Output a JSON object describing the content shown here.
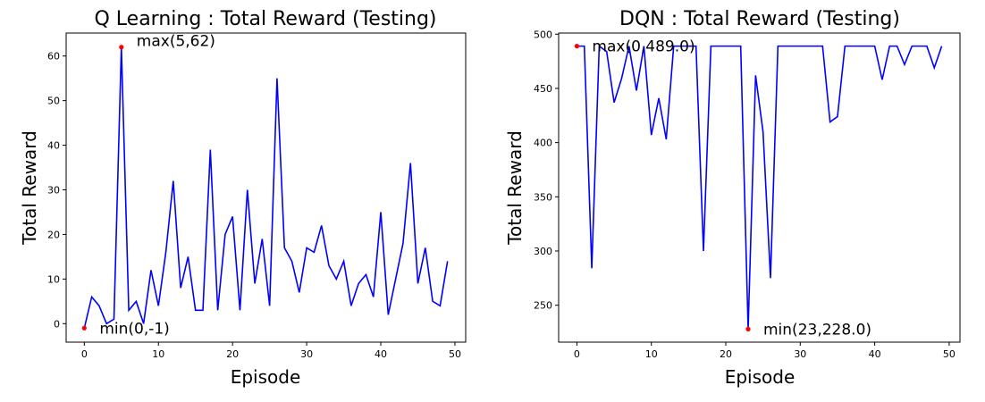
{
  "chart_data": [
    {
      "type": "line",
      "title": "Q Learning : Total Reward (Testing)",
      "xlabel": "Episode",
      "ylabel": "Total Reward",
      "xlim": [
        -2.45,
        51.45
      ],
      "ylim": [
        -4.15,
        65.15
      ],
      "xticks": [
        0,
        10,
        20,
        30,
        40,
        50
      ],
      "yticks": [
        0,
        10,
        20,
        30,
        40,
        50,
        60
      ],
      "line_color": "#0000ff",
      "marker_color": "#ff0000",
      "grid": false,
      "x": [
        0,
        1,
        2,
        3,
        4,
        5,
        6,
        7,
        8,
        9,
        10,
        11,
        12,
        13,
        14,
        15,
        16,
        17,
        18,
        19,
        20,
        21,
        22,
        23,
        24,
        25,
        26,
        27,
        28,
        29,
        30,
        31,
        32,
        33,
        34,
        35,
        36,
        37,
        38,
        39,
        40,
        41,
        42,
        43,
        44,
        45,
        46,
        47,
        48,
        49
      ],
      "values": [
        -1,
        6,
        4,
        0,
        1,
        62,
        3,
        5,
        0,
        12,
        4,
        16,
        32,
        8,
        15,
        3,
        3,
        39,
        3,
        20,
        24,
        3,
        30,
        9,
        19,
        4,
        55,
        17,
        14,
        7,
        17,
        16,
        22,
        13,
        10,
        14,
        4,
        9,
        11,
        6,
        25,
        2,
        10,
        18,
        36,
        9,
        17,
        5,
        4,
        14
      ],
      "annotations": [
        {
          "label": "max(5,62)",
          "x": 5,
          "y": 62,
          "anchor": "upper-right"
        },
        {
          "label": "min(0,-1)",
          "x": 0,
          "y": -1,
          "anchor": "right"
        }
      ]
    },
    {
      "type": "line",
      "title": "DQN : Total Reward (Testing)",
      "xlabel": "Episode",
      "ylabel": "Total Reward",
      "xlim": [
        -2.45,
        51.45
      ],
      "ylim": [
        215.95,
        501.05
      ],
      "xticks": [
        0,
        10,
        20,
        30,
        40,
        50
      ],
      "yticks": [
        250,
        300,
        350,
        400,
        450,
        500
      ],
      "line_color": "#0000ff",
      "marker_color": "#ff0000",
      "grid": false,
      "x": [
        0,
        1,
        2,
        3,
        4,
        5,
        6,
        7,
        8,
        9,
        10,
        11,
        12,
        13,
        14,
        15,
        16,
        17,
        18,
        19,
        20,
        21,
        22,
        23,
        24,
        25,
        26,
        27,
        28,
        29,
        30,
        31,
        32,
        33,
        34,
        35,
        36,
        37,
        38,
        39,
        40,
        41,
        42,
        43,
        44,
        45,
        46,
        47,
        48,
        49
      ],
      "values": [
        489,
        489,
        284,
        489,
        484,
        437,
        459,
        489,
        448,
        489,
        407,
        441,
        403,
        489,
        489,
        489,
        489,
        300,
        489,
        489,
        489,
        489,
        489,
        228,
        462,
        410,
        275,
        489,
        489,
        489,
        489,
        489,
        489,
        489,
        419,
        424,
        489,
        489,
        489,
        489,
        489,
        458,
        489,
        489,
        472,
        489,
        489,
        489,
        469,
        489
      ],
      "annotations": [
        {
          "label": "max(0,489.0)",
          "x": 0,
          "y": 489,
          "anchor": "right"
        },
        {
          "label": "min(23,228.0)",
          "x": 23,
          "y": 228,
          "anchor": "right"
        }
      ]
    }
  ]
}
